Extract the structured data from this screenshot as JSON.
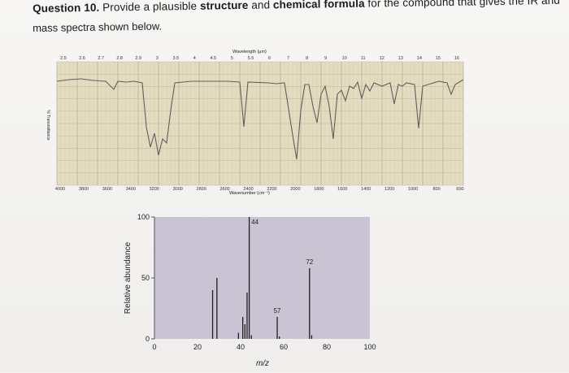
{
  "question": {
    "number": "Question 10.",
    "text_before": "Provide a plausible",
    "bold1": "structure",
    "and": "and",
    "bold2": "chemical formula",
    "text_after": "for the compound that gives the IR and",
    "line2": "mass spectra shown below."
  },
  "ir_spectrum": {
    "top_axis_label": "Wavelength (μm)",
    "top_ticks": [
      "2.5",
      "2.6",
      "2.7",
      "2.8",
      "2.9",
      "3",
      "3.5",
      "4",
      "4.5",
      "5",
      "5.5",
      "6",
      "7",
      "8",
      "9",
      "10",
      "11",
      "12",
      "13",
      "14",
      "15",
      "16"
    ],
    "bottom_axis_label": "Wavenumber (cm⁻¹)",
    "bottom_ticks": [
      "4000",
      "3800",
      "3600",
      "3400",
      "3200",
      "3000",
      "2800",
      "2600",
      "2400",
      "2200",
      "2000",
      "1800",
      "1600",
      "1400",
      "1200",
      "1000",
      "800",
      "600"
    ],
    "y_label": "% Transmittance"
  },
  "chart_data": {
    "type": "bar",
    "title": "",
    "xlabel": "m/z",
    "ylabel": "Relative abundance",
    "xlim": [
      0,
      100
    ],
    "ylim": [
      0,
      100
    ],
    "x_ticks": [
      0,
      20,
      40,
      60,
      80,
      100
    ],
    "y_ticks": [
      0,
      50,
      100
    ],
    "peaks": [
      {
        "x": 27,
        "y": 40
      },
      {
        "x": 29,
        "y": 50
      },
      {
        "x": 39,
        "y": 5
      },
      {
        "x": 41,
        "y": 18
      },
      {
        "x": 42,
        "y": 12
      },
      {
        "x": 43,
        "y": 38
      },
      {
        "x": 44,
        "y": 100
      },
      {
        "x": 45,
        "y": 3
      },
      {
        "x": 57,
        "y": 18
      },
      {
        "x": 58,
        "y": 2
      },
      {
        "x": 72,
        "y": 58
      },
      {
        "x": 73,
        "y": 3
      }
    ],
    "peak_labels": [
      {
        "x": 44,
        "text": "44"
      },
      {
        "x": 57,
        "text": "57"
      },
      {
        "x": 72,
        "text": "72"
      }
    ]
  }
}
